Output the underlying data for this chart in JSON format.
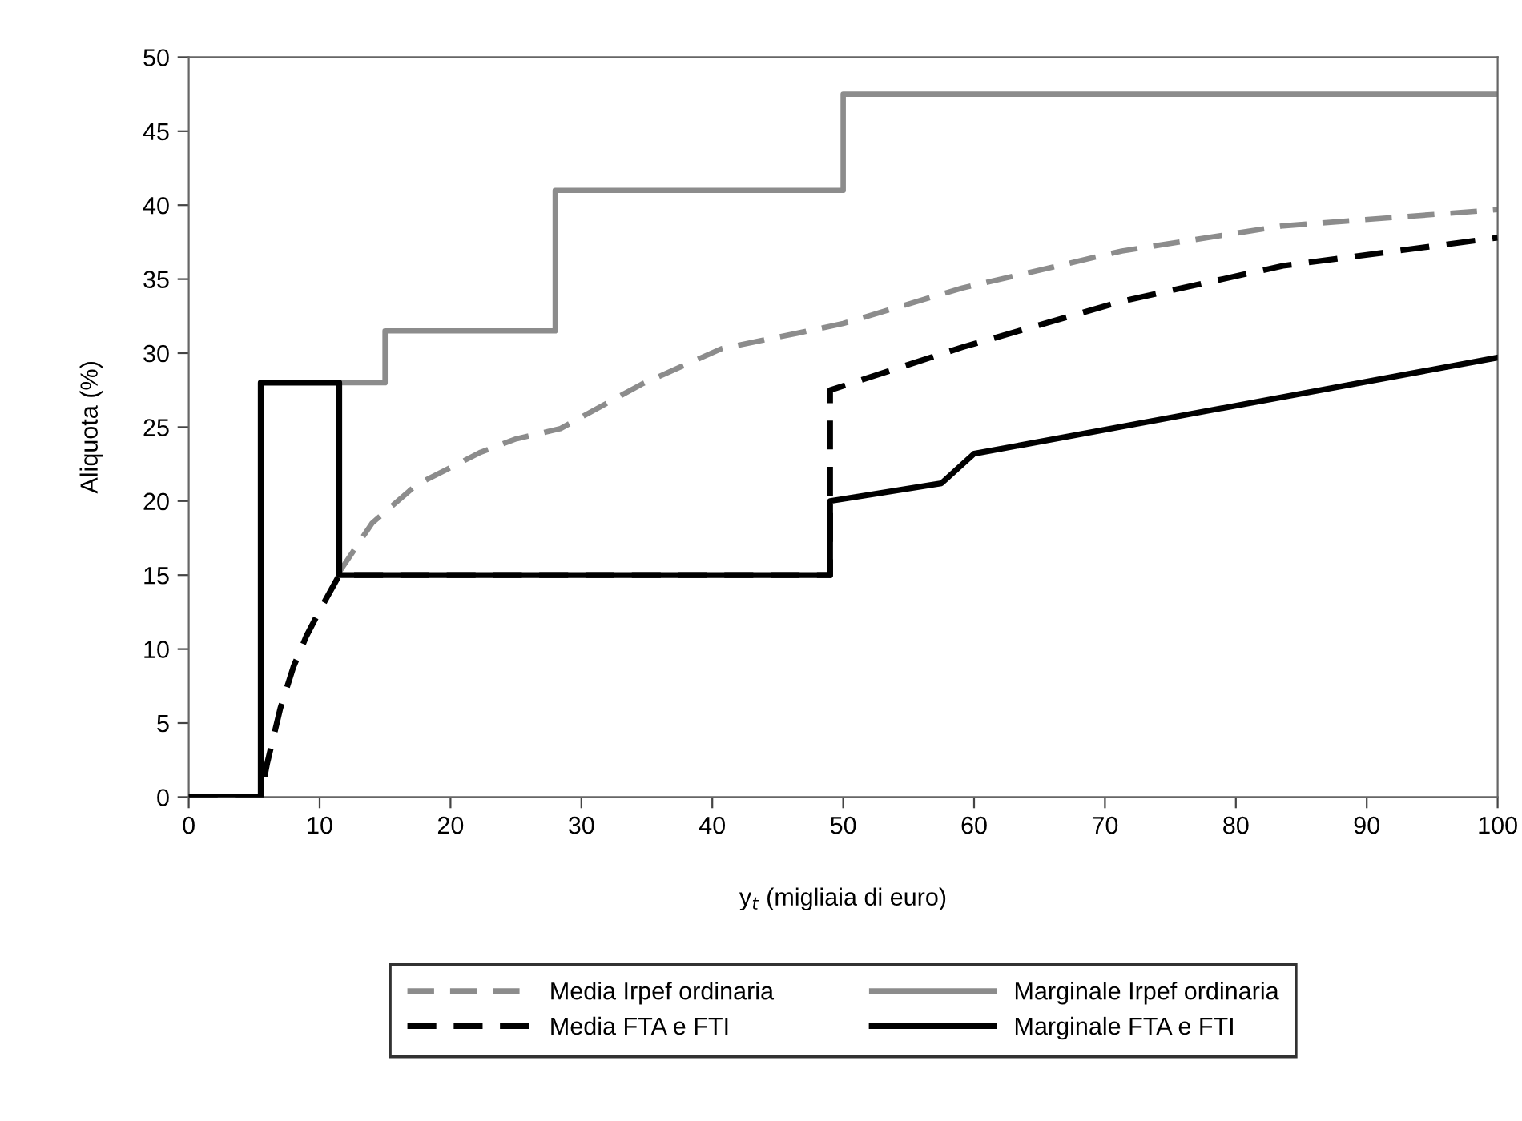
{
  "chart_data": {
    "type": "line",
    "xlabel": "y$_{t}$ (migliaia di euro)",
    "ylabel": "Aliquota (%)",
    "xlim": [
      0,
      100
    ],
    "ylim": [
      0,
      50
    ],
    "xticks": [
      0,
      10,
      20,
      30,
      40,
      50,
      60,
      70,
      80,
      90,
      100
    ],
    "yticks": [
      0,
      5,
      10,
      15,
      20,
      25,
      30,
      35,
      40,
      45,
      50
    ],
    "grid": false,
    "legend": "bottom",
    "marker": "none",
    "series": [
      {
        "name": "Media Irpef ordinaria",
        "color": "#8c8c8c",
        "line_style": "dashed",
        "x": [
          11.5,
          14,
          17.4,
          22.3,
          25,
          28.4,
          34.6,
          40.7,
          46.8,
          50,
          59.1,
          71.3,
          83.6,
          100
        ],
        "values": [
          15.2,
          18.5,
          21.1,
          23.3,
          24.2,
          24.9,
          27.9,
          30.3,
          31.4,
          32,
          34.4,
          36.9,
          38.6,
          39.7
        ]
      },
      {
        "name": "Media FTA e FTI",
        "color": "#000000",
        "line_style": "dashed",
        "x": [
          0,
          5.5,
          6,
          7,
          8,
          9,
          10,
          11.5,
          20,
          30,
          40,
          49,
          49,
          59.1,
          71.3,
          83.6,
          100
        ],
        "values": [
          0,
          0,
          2.3,
          6,
          8.8,
          10.9,
          12.6,
          15,
          15,
          15,
          15,
          15,
          27.5,
          30.4,
          33.5,
          35.9,
          37.8
        ]
      },
      {
        "name": "Marginale Irpef ordinaria",
        "color": "#8c8c8c",
        "line_style": "solid",
        "x": [
          11.5,
          15,
          15,
          28,
          28,
          50,
          50,
          100
        ],
        "values": [
          28,
          28,
          31.5,
          31.5,
          41,
          41,
          47.5,
          47.5
        ]
      },
      {
        "name": "Marginale FTA e FTI",
        "color": "#000000",
        "line_style": "solid",
        "x": [
          0,
          5.5,
          5.5,
          11.5,
          11.5,
          49,
          49,
          57.5,
          60,
          100
        ],
        "values": [
          0,
          0,
          28,
          28,
          15,
          15,
          20,
          21.2,
          23.2,
          29.7
        ]
      }
    ]
  }
}
